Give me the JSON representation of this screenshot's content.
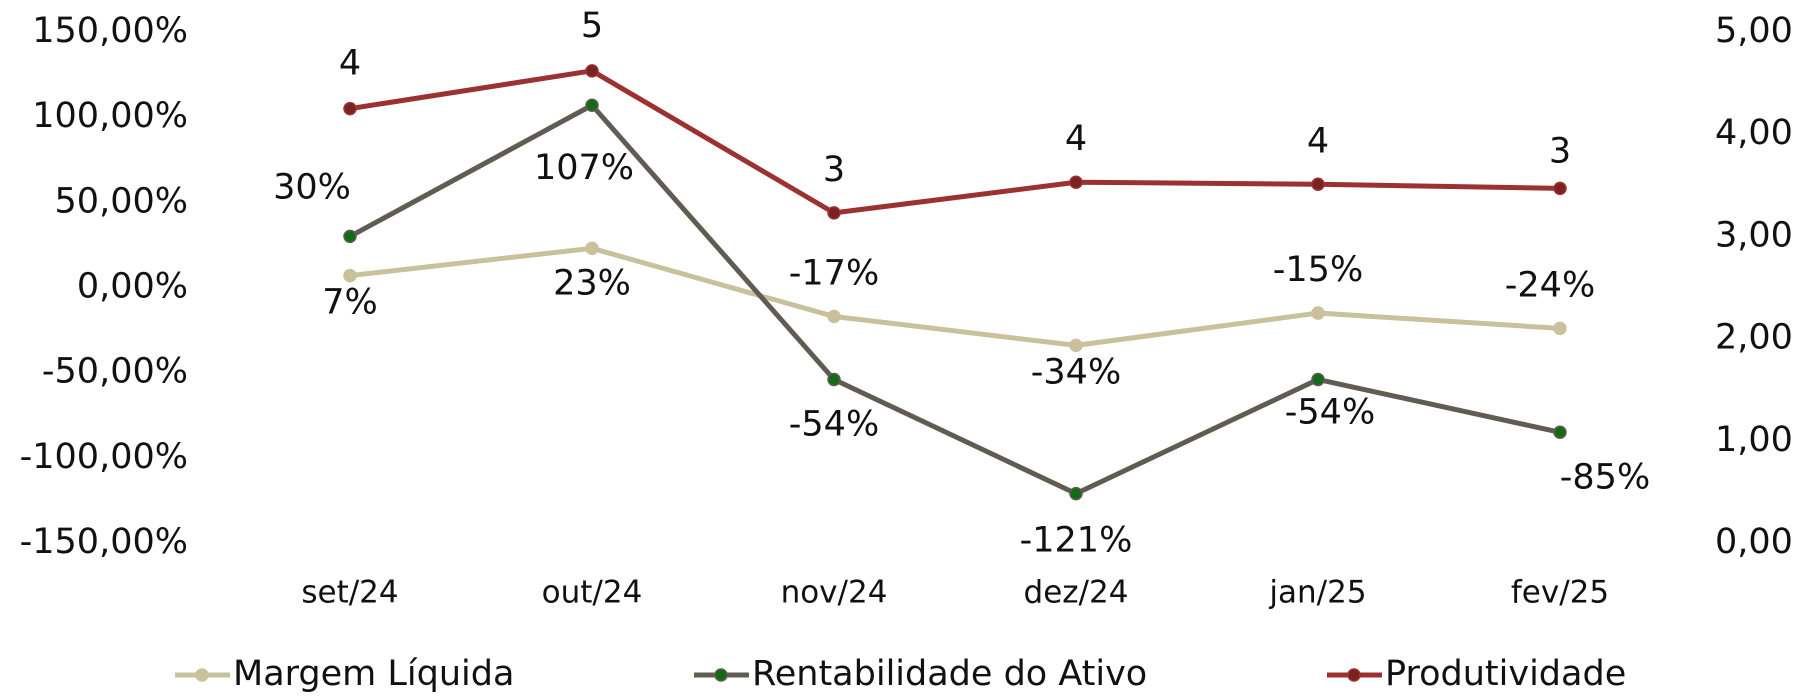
{
  "chart_data": {
    "type": "line",
    "categories": [
      "set/24",
      "out/24",
      "nov/24",
      "dez/24",
      "jan/25",
      "fev/25"
    ],
    "series": [
      {
        "name": "Margem Líquida",
        "color": "#c9c09c",
        "marker_color": "#c9c09c",
        "label_color": "#a99d6c",
        "values": [
          7,
          23,
          -17,
          -34,
          -15,
          -24
        ],
        "value_labels": [
          "7%",
          "23%",
          "-17%",
          "-34%",
          "-15%",
          "-24%"
        ]
      },
      {
        "name": "Rentabilidade do Ativo",
        "color": "#605c53",
        "marker_color": "#136b13",
        "label_color": "#111111",
        "values": [
          30,
          107,
          -54,
          -121,
          -54,
          -85
        ],
        "value_labels": [
          "30%",
          "107%",
          "-54%",
          "-121%",
          "-54%",
          "-85%"
        ]
      },
      {
        "name": "Produtividade",
        "color": "#9b3131",
        "marker_color": "#7a2222",
        "label_color": "#7a2a2a",
        "axis": "y2",
        "values": [
          4.25,
          4.62,
          3.23,
          3.53,
          3.51,
          3.47
        ],
        "value_labels": [
          "4",
          "5",
          "3",
          "4",
          "4",
          "3"
        ]
      }
    ],
    "ylim": [
      -150,
      150
    ],
    "yticks": [
      {
        "value": -150,
        "label": "-150,00%"
      },
      {
        "value": -100,
        "label": "-100,00%"
      },
      {
        "value": -50,
        "label": "-50,00%"
      },
      {
        "value": 0,
        "label": "0,00%"
      },
      {
        "value": 50,
        "label": "50,00%"
      },
      {
        "value": 100,
        "label": "100,00%"
      },
      {
        "value": 150,
        "label": "150,00%"
      }
    ],
    "y2lim": [
      0,
      5
    ],
    "y2ticks": [
      {
        "value": 0,
        "label": "0,00"
      },
      {
        "value": 1,
        "label": "1,00"
      },
      {
        "value": 2,
        "label": "2,00"
      },
      {
        "value": 3,
        "label": "3,00"
      },
      {
        "value": 4,
        "label": "4,00"
      },
      {
        "value": 5,
        "label": "5,00"
      }
    ],
    "grid": false,
    "legend": "bottom"
  }
}
